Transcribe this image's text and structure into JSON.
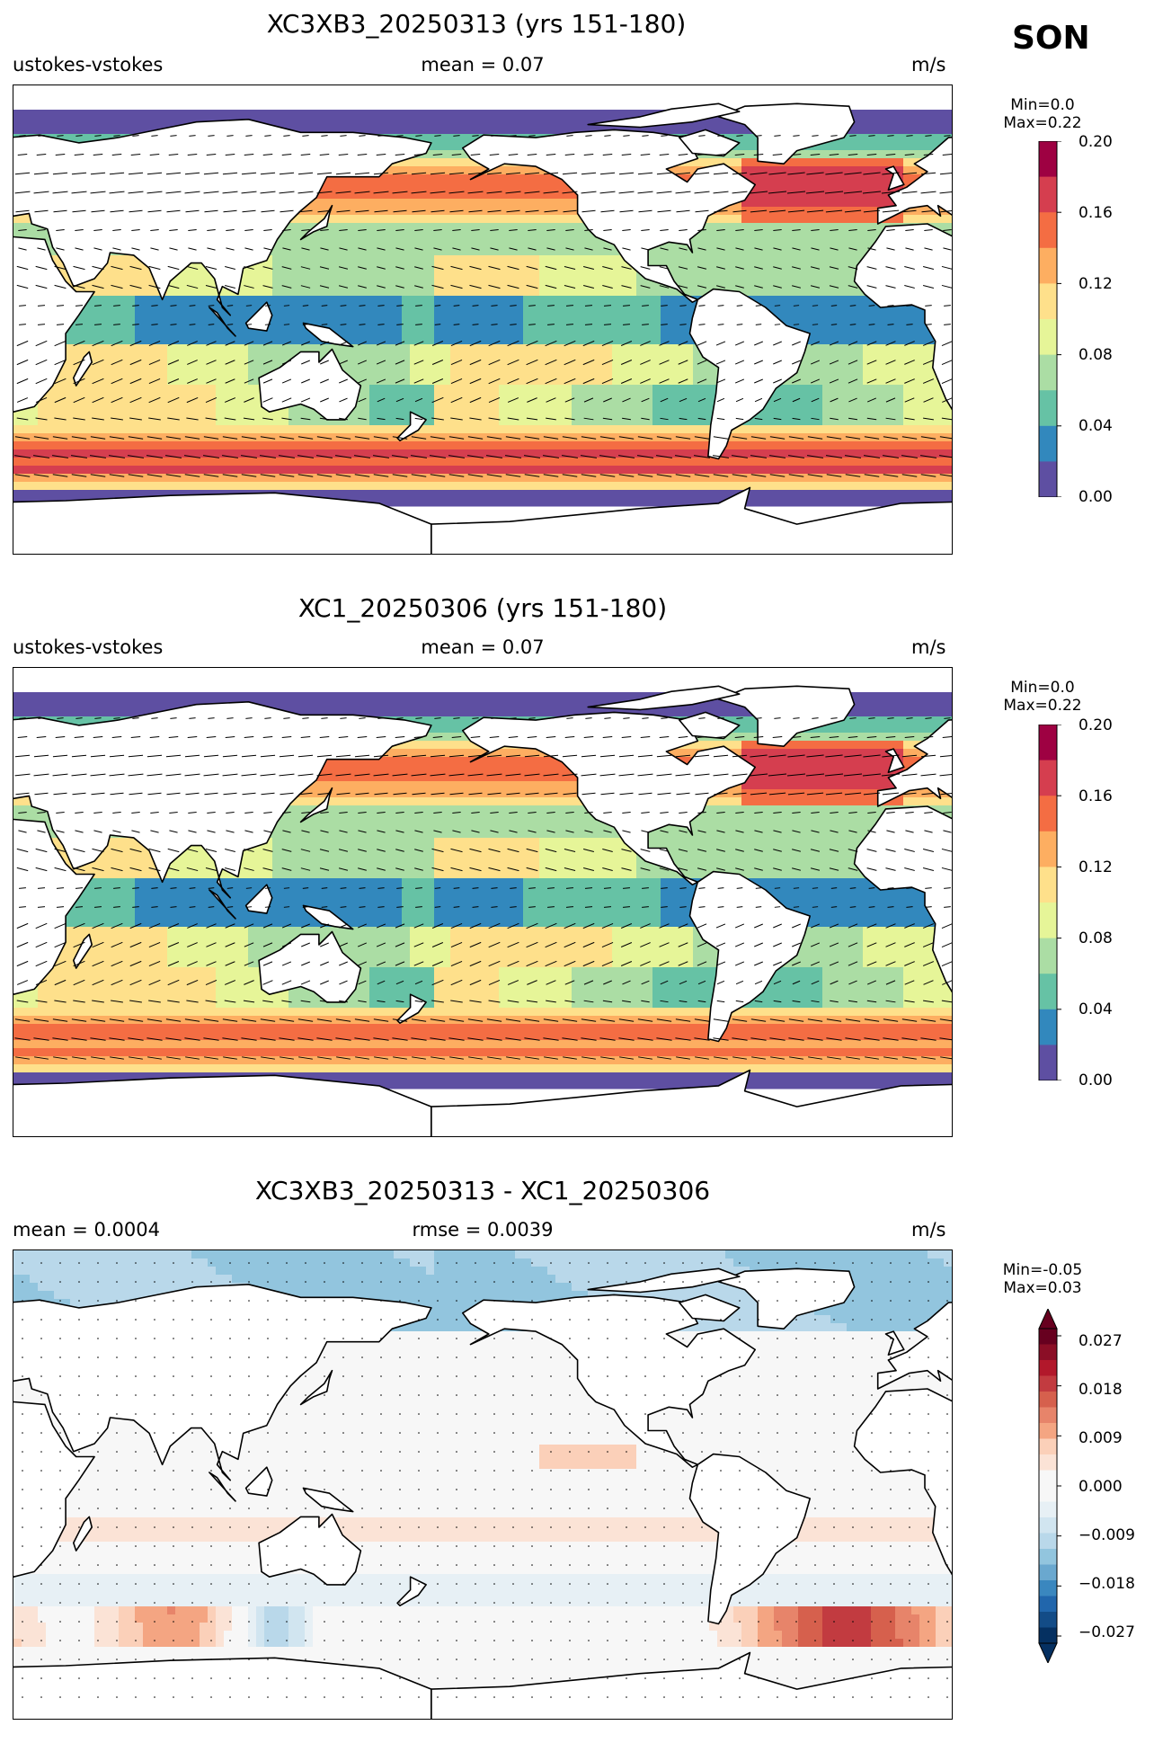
{
  "season": "SON",
  "units": "m/s",
  "panels": [
    {
      "title": "XC3XB3_20250313 (yrs 151-180)",
      "left": "ustokes-vstokes",
      "center": "mean = 0.07",
      "right": "m/s",
      "minmax": [
        "Min=0.0",
        "Max=0.22"
      ],
      "ticks": [
        "0.20",
        "0.16",
        "0.12",
        "0.08",
        "0.04",
        "0.00"
      ]
    },
    {
      "title": "XC1_20250306 (yrs 151-180)",
      "left": "ustokes-vstokes",
      "center": "mean = 0.07",
      "right": "m/s",
      "minmax": [
        "Min=0.0",
        "Max=0.22"
      ],
      "ticks": [
        "0.20",
        "0.16",
        "0.12",
        "0.08",
        "0.04",
        "0.00"
      ]
    },
    {
      "title": "XC3XB3_20250313 - XC1_20250306",
      "left": "mean = 0.0004",
      "center": "rmse = 0.0039",
      "right": "m/s",
      "minmax": [
        "Min=-0.05",
        "Max=0.03"
      ],
      "ticks": [
        "0.027",
        "0.018",
        "0.009",
        "0.000",
        "−0.009",
        "−0.018",
        "−0.027"
      ]
    }
  ],
  "colormaps": {
    "spectral": [
      "#5e4fa2",
      "#3288bd",
      "#66c2a5",
      "#abdda4",
      "#e6f598",
      "#fee08b",
      "#fdae61",
      "#f46d43",
      "#d53e4f",
      "#9e0142"
    ],
    "diverging": [
      "#053061",
      "#134c87",
      "#2166ac",
      "#3a87bf",
      "#6aa8cf",
      "#92c5de",
      "#b9d8ea",
      "#d1e5f0",
      "#e7f0f5",
      "#f7f7f7",
      "#f7f7f7",
      "#fbe3d6",
      "#fbd0b9",
      "#f4a582",
      "#e7846a",
      "#d6604d",
      "#c23b40",
      "#b2182b",
      "#8b0e26",
      "#67001f"
    ]
  }
}
